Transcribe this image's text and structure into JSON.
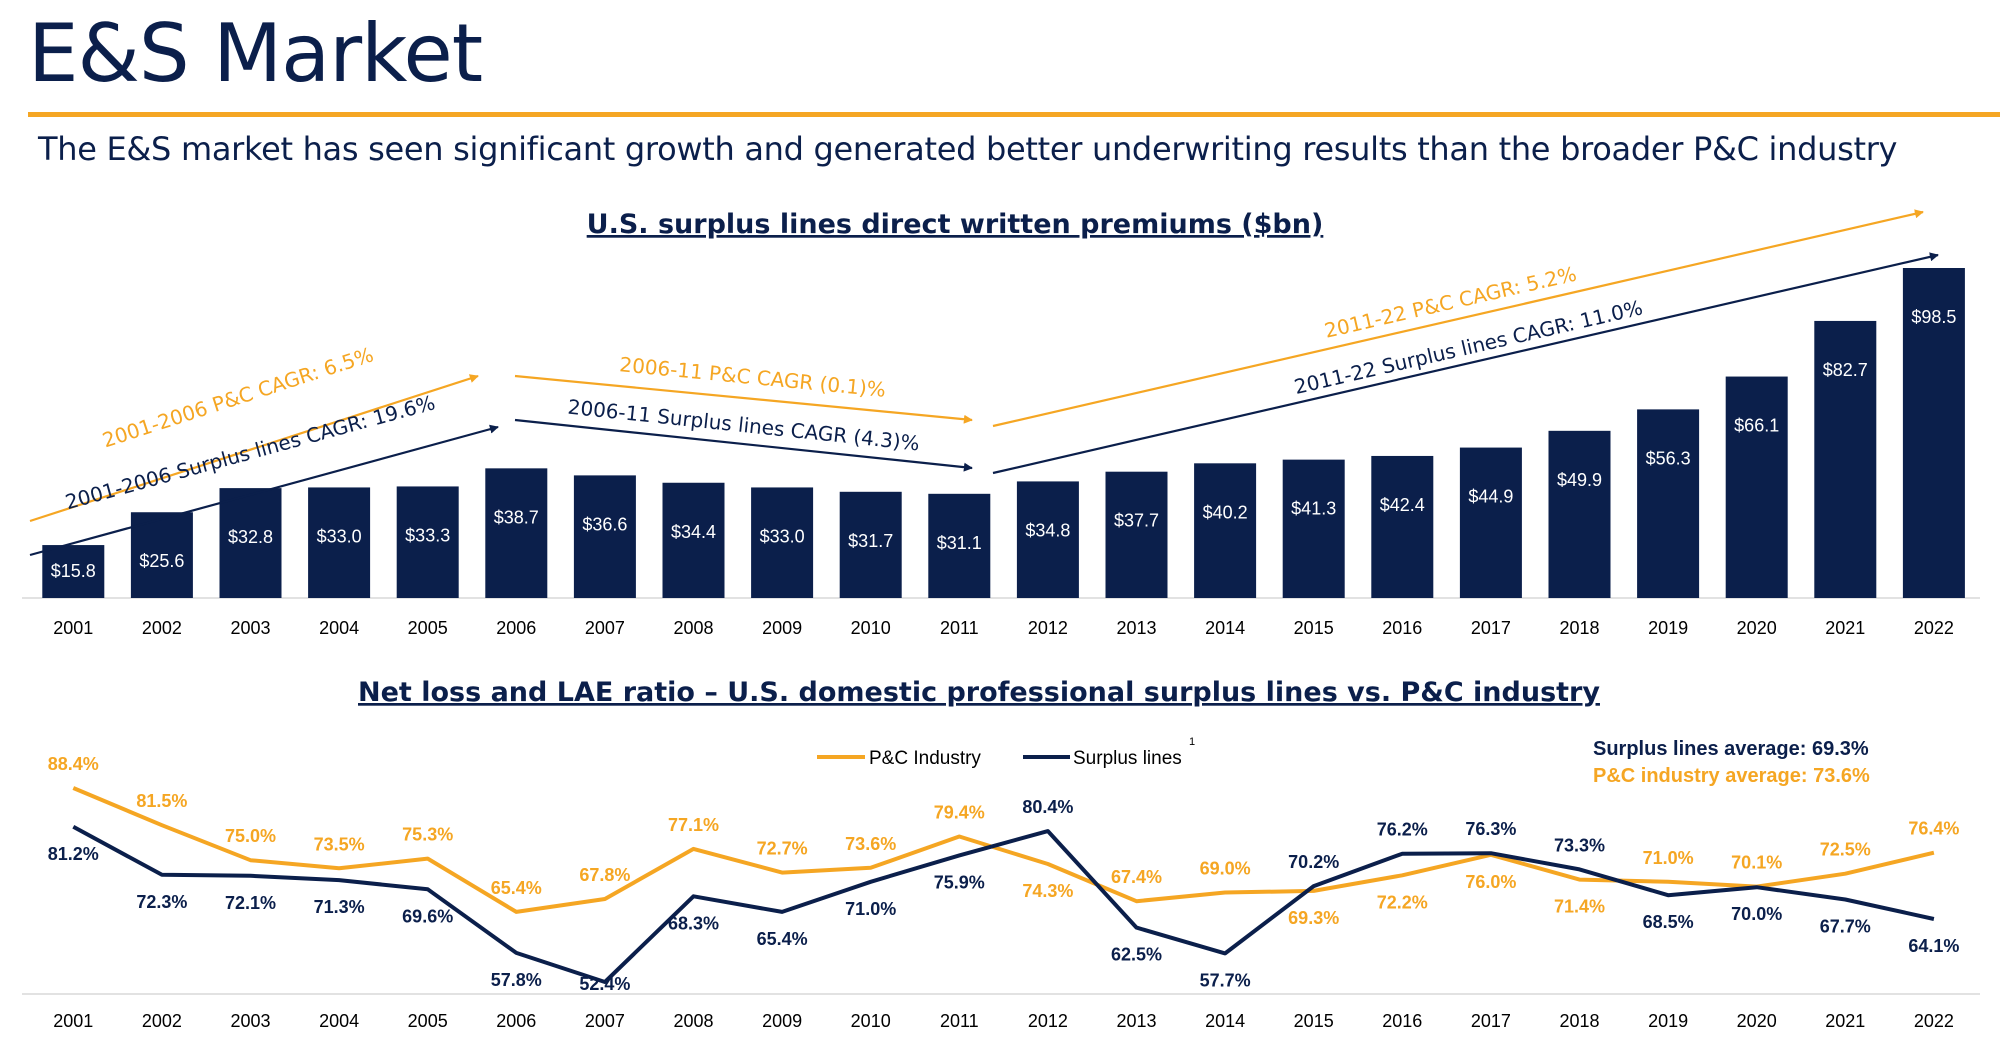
{
  "page": {
    "title": "E&S Market",
    "subtitle": "The E&S market has seen significant growth and generated better underwriting results than the broader P&C industry"
  },
  "colors": {
    "navy": "#0b1f4b",
    "orange": "#f5a623"
  },
  "chart_data": [
    {
      "type": "bar",
      "title": "U.S. surplus lines direct written premiums ($bn)",
      "categories": [
        "2001",
        "2002",
        "2003",
        "2004",
        "2005",
        "2006",
        "2007",
        "2008",
        "2009",
        "2010",
        "2011",
        "2012",
        "2013",
        "2014",
        "2015",
        "2016",
        "2017",
        "2018",
        "2019",
        "2020",
        "2021",
        "2022"
      ],
      "values": [
        15.8,
        25.6,
        32.8,
        33.0,
        33.3,
        38.7,
        36.6,
        34.4,
        33.0,
        31.7,
        31.1,
        34.8,
        37.7,
        40.2,
        41.3,
        42.4,
        44.9,
        49.9,
        56.3,
        66.1,
        82.7,
        98.5
      ],
      "data_labels": [
        "$15.8",
        "$25.6",
        "$32.8",
        "$33.0",
        "$33.3",
        "$38.7",
        "$36.6",
        "$34.4",
        "$33.0",
        "$31.7",
        "$31.1",
        "$34.8",
        "$37.7",
        "$40.2",
        "$41.3",
        "$42.4",
        "$44.9",
        "$49.9",
        "$56.3",
        "$66.1",
        "$82.7",
        "$98.5"
      ],
      "annotations": [
        {
          "text": "2001-2006 P&C CAGR: 6.5%",
          "color": "orange",
          "from": "2001",
          "to": "2006"
        },
        {
          "text": "2001-2006 Surplus lines CAGR: 19.6%",
          "color": "navy",
          "from": "2001",
          "to": "2006"
        },
        {
          "text": "2006-11 P&C CAGR (0.1)%",
          "color": "orange",
          "from": "2006",
          "to": "2011"
        },
        {
          "text": "2006-11 Surplus lines CAGR (4.3)%",
          "color": "navy",
          "from": "2006",
          "to": "2011"
        },
        {
          "text": "2011-22 P&C CAGR: 5.2%",
          "color": "orange",
          "from": "2011",
          "to": "2022"
        },
        {
          "text": "2011-22 Surplus lines CAGR: 11.0%",
          "color": "navy",
          "from": "2011",
          "to": "2022"
        }
      ]
    },
    {
      "type": "line",
      "title": "Net loss and LAE ratio – U.S. domestic professional surplus lines vs. P&C industry",
      "x": [
        "2001",
        "2002",
        "2003",
        "2004",
        "2005",
        "2006",
        "2007",
        "2008",
        "2009",
        "2010",
        "2011",
        "2012",
        "2013",
        "2014",
        "2015",
        "2016",
        "2017",
        "2018",
        "2019",
        "2020",
        "2021",
        "2022"
      ],
      "series": [
        {
          "name": "P&C Industry",
          "color": "orange",
          "values": [
            88.4,
            81.5,
            75.0,
            73.5,
            75.3,
            65.4,
            67.8,
            77.1,
            72.7,
            73.6,
            79.4,
            74.3,
            67.4,
            69.0,
            69.3,
            72.2,
            76.0,
            71.4,
            71.0,
            70.1,
            72.5,
            76.4
          ],
          "labels": [
            "88.4%",
            "81.5%",
            "75.0%",
            "73.5%",
            "75.3%",
            "65.4%",
            "67.8%",
            "77.1%",
            "72.7%",
            "73.6%",
            "79.4%",
            "74.3%",
            "67.4%",
            "69.0%",
            "69.3%",
            "72.2%",
            "76.0%",
            "71.4%",
            "71.0%",
            "70.1%",
            "72.5%",
            "76.4%"
          ]
        },
        {
          "name": "Surplus lines",
          "color": "navy",
          "values": [
            81.2,
            72.3,
            72.1,
            71.3,
            69.6,
            57.8,
            52.4,
            68.3,
            65.4,
            71.0,
            75.9,
            80.4,
            62.5,
            57.7,
            70.2,
            76.2,
            76.3,
            73.3,
            68.5,
            70.0,
            67.7,
            64.1
          ],
          "labels": [
            "81.2%",
            "72.3%",
            "72.1%",
            "71.3%",
            "69.6%",
            "57.8%",
            "52.4%",
            "68.3%",
            "65.4%",
            "71.0%",
            "75.9%",
            "80.4%",
            "62.5%",
            "57.7%",
            "70.2%",
            "76.2%",
            "76.3%",
            "73.3%",
            "68.5%",
            "70.0%",
            "67.7%",
            "64.1%"
          ]
        }
      ],
      "legend_footnote": "1",
      "averages": [
        {
          "text": "Surplus lines average: 69.3%",
          "color": "navy"
        },
        {
          "text": "P&C industry average: 73.6%",
          "color": "orange"
        }
      ]
    }
  ]
}
